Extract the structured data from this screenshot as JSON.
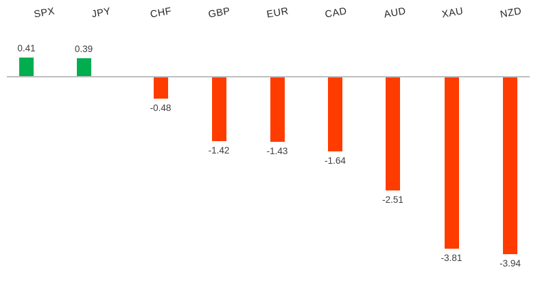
{
  "chart_data": {
    "type": "bar",
    "categories": [
      "SPX",
      "JPY",
      "CHF",
      "GBP",
      "EUR",
      "CAD",
      "AUD",
      "XAU",
      "NZD"
    ],
    "values": [
      0.41,
      0.39,
      -0.48,
      -1.42,
      -1.43,
      -1.64,
      -2.51,
      -3.81,
      -3.94
    ],
    "data_labels": [
      "0.41",
      "0.39",
      "-0.48",
      "-1.42",
      "-1.43",
      "-1.64",
      "-2.51",
      "-3.81",
      "-3.94"
    ],
    "title": "",
    "xlabel": "",
    "ylabel": "",
    "ylim": [
      -4.4,
      1.1
    ],
    "grid": false,
    "legend": false,
    "axis_labels_position": "top",
    "colors": {
      "positive": "#00ae50",
      "negative": "#ff3c00",
      "axis_line": "#bfbfbf",
      "category_text": "#262626",
      "value_text": "#3d3d3d",
      "background": "#ffffff"
    }
  }
}
